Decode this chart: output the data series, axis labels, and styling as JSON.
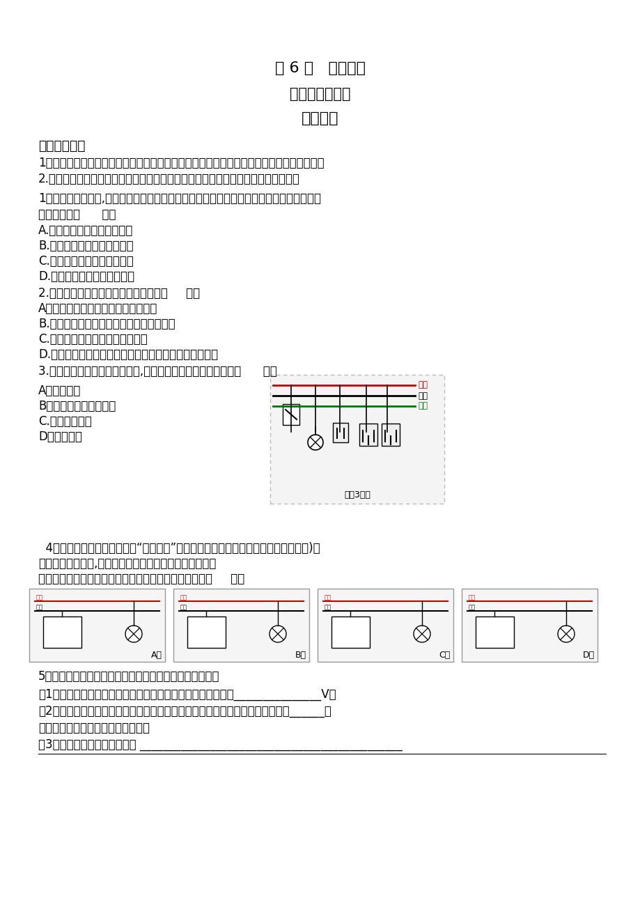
{
  "bg_color": "#ffffff",
  "title1": "第 6 节   家庭用电",
  "title2": "（一）家庭电路",
  "title3": "学习目标",
  "section1": "夸实基础巩固",
  "obj1": "1．了解家庭电路中进户线、电能表、总开关、保护装置、电灯和开关、插座等的分布规律。",
  "obj2": "2.了解进户线中火线和零线间的电压，学会使用测电笔辨别火线和零线的正确方法。",
  "q1": "1。安装家庭电路时,从进户线到用电器之间有总开关、电能表、保护装置，它们正确的排列",
  "q1b": "顺序应该是（      ）。",
  "q1A": "A.总开关、保护装置、电能表",
  "q1B": "B.电能表、总开关、保护装置",
  "q1C": "C.保护装置、电能表、总开关",
  "q1D": "D.电能表、保护装置、总开关",
  "q2": "2.关于家庭电路，下列说法中正确的是（     ）。",
  "q2A": "A。电能表是测量用电器总电流的仪表",
  "q2B": "B.空气开关跳闸，说明电路中一定出现短路",
  "q2C": "C.空气开关可防止触电事故的发生",
  "q2D": "D.在家庭电路中各用电器之间、各插座之间都是并联关系",
  "q3": "3.如图所示为某家庭电路局部图,其中有一个连接错误的器件是（      ）。",
  "q3A": "A。闸刀开关",
  "q3B": "B。带保险丝的二孔插座",
  "q3C": "C.带开关的灯泡",
  "q3D": "D。三孔插座",
  "q4_intro": "  4。家庭电路中需要安装一个“一开三孔”开关（即一个开关和一个三孔插座连在一起)要",
  "q4_intro2": "求插座能单独使用,开关能控制电灯且符合安全用电原则。",
  "q4_sub": "从实物反面观察，如图所示的几种接线中符合要求的是（     ）。",
  "q5_intro": "5．根据所学的进户线中的火线和零线知识回答下列问题：",
  "q5_1": "（1）家庭电路的进户线分别为火线和零线，两者之间的电压为_______________V。",
  "q5_2": "（2）辨别火线和零线可以用测电笔。测电笔由四部分组成，分别是笔尖金属体、______和",
  "q5_2b": "（请按教材所示的结构顺序填写）。",
  "q5_3": "（3）测电笔的正确使用方法是 _____________________________________________"
}
